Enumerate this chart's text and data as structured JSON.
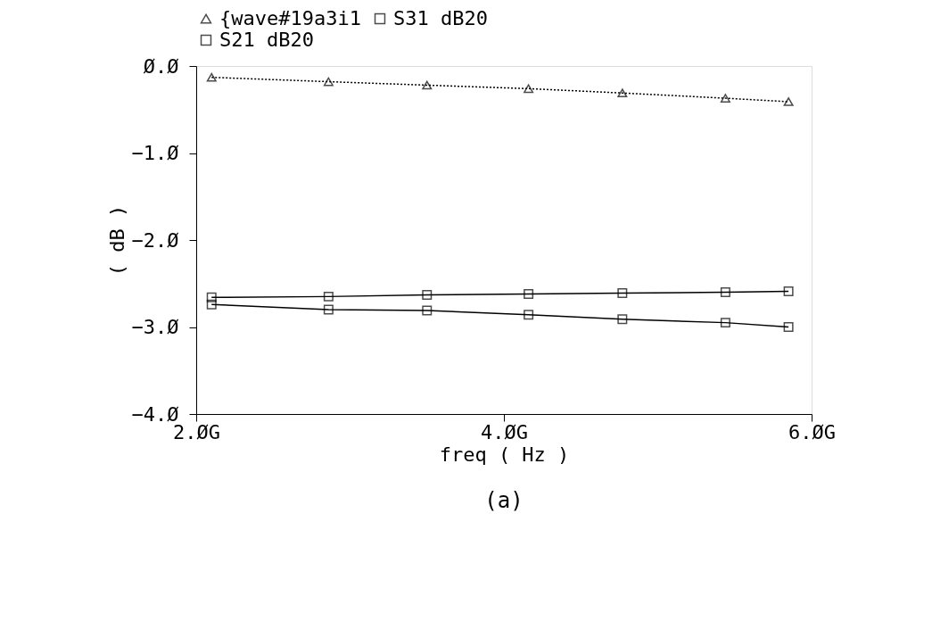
{
  "chart_data": {
    "type": "line",
    "xlabel": "freq ( Hz )",
    "ylabel": "( dB )",
    "xlim": [
      2,
      6
    ],
    "xticks": [
      {
        "value": 2,
        "label": "2.ØG"
      },
      {
        "value": 4,
        "label": "4.ØG"
      },
      {
        "value": 6,
        "label": "6.ØG"
      }
    ],
    "ylim": [
      -4,
      0
    ],
    "yticks": [
      {
        "value": 0,
        "label": "Ø.Ø"
      },
      {
        "value": -1,
        "label": "−1.Ø"
      },
      {
        "value": -2,
        "label": "−2.Ø"
      },
      {
        "value": -3,
        "label": "−3.Ø"
      },
      {
        "value": -4,
        "label": "−4.Ø"
      }
    ],
    "legend": "top",
    "grid": false,
    "series": [
      {
        "name": "{wave#19a3i1",
        "color": "#000000",
        "marker": "triangle",
        "line_style": "dotted",
        "x": [
          2.1,
          2.86,
          3.5,
          4.16,
          4.77,
          5.44,
          5.85
        ],
        "values": [
          -0.13,
          -0.18,
          -0.22,
          -0.26,
          -0.31,
          -0.37,
          -0.41
        ]
      },
      {
        "name": "S31 dB20",
        "color": "#000000",
        "marker": "square",
        "line_style": "solid",
        "x": [
          2.1,
          2.86,
          3.5,
          4.16,
          4.77,
          5.44,
          5.85
        ],
        "values": [
          -2.66,
          -2.65,
          -2.63,
          -2.62,
          -2.61,
          -2.6,
          -2.59
        ]
      },
      {
        "name": "S21 dB20",
        "color": "#000000",
        "marker": "square",
        "line_style": "solid",
        "x": [
          2.1,
          2.86,
          3.5,
          4.16,
          4.77,
          5.44,
          5.85
        ],
        "values": [
          -2.74,
          -2.8,
          -2.81,
          -2.86,
          -2.91,
          -2.95,
          -3.0
        ]
      }
    ],
    "annotations": [
      "(a)"
    ]
  }
}
